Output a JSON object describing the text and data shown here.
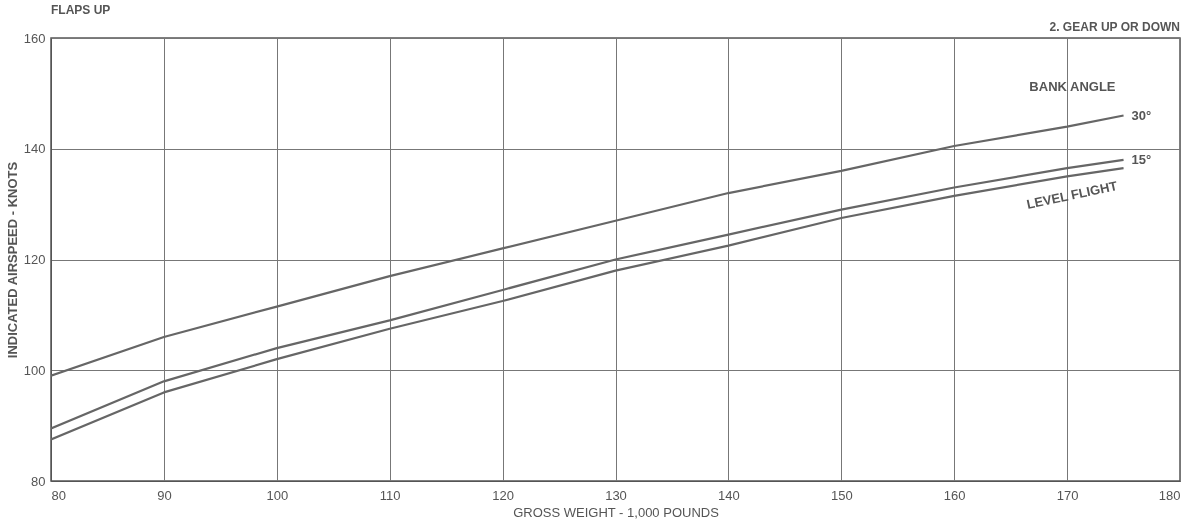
{
  "chart_data": {
    "type": "line",
    "title": "FLAPS UP",
    "xlabel": "GROSS WEIGHT - 1,000 POUNDS",
    "ylabel": "INDICATED AIRSPEED - KNOTS",
    "annotations": [
      "2. GEAR UP OR DOWN",
      "BANK ANGLE"
    ],
    "x": [
      80,
      90,
      100,
      110,
      120,
      130,
      140,
      150,
      160,
      170,
      175
    ],
    "series": [
      {
        "name": "30°",
        "color": "#666666",
        "values": [
          99,
          106,
          111.5,
          117,
          122,
          127,
          132,
          136,
          140.5,
          144,
          146
        ]
      },
      {
        "name": "15°",
        "color": "#666666",
        "values": [
          89.5,
          98,
          104,
          109,
          114.5,
          120,
          124.5,
          129,
          133,
          136.5,
          138
        ]
      },
      {
        "name": "LEVEL FLIGHT",
        "color": "#666666",
        "values": [
          87.5,
          96,
          102,
          107.5,
          112.5,
          118,
          122.5,
          127.5,
          131.5,
          135,
          136.5
        ]
      }
    ],
    "xlim": [
      80,
      180
    ],
    "ylim": [
      80,
      160
    ],
    "xticks": [
      80,
      90,
      100,
      110,
      120,
      130,
      140,
      150,
      160,
      170,
      180
    ],
    "yticks": [
      80,
      100,
      120,
      140,
      160
    ],
    "grid": true,
    "legend": false,
    "marker": "none",
    "line_style": "solid"
  }
}
